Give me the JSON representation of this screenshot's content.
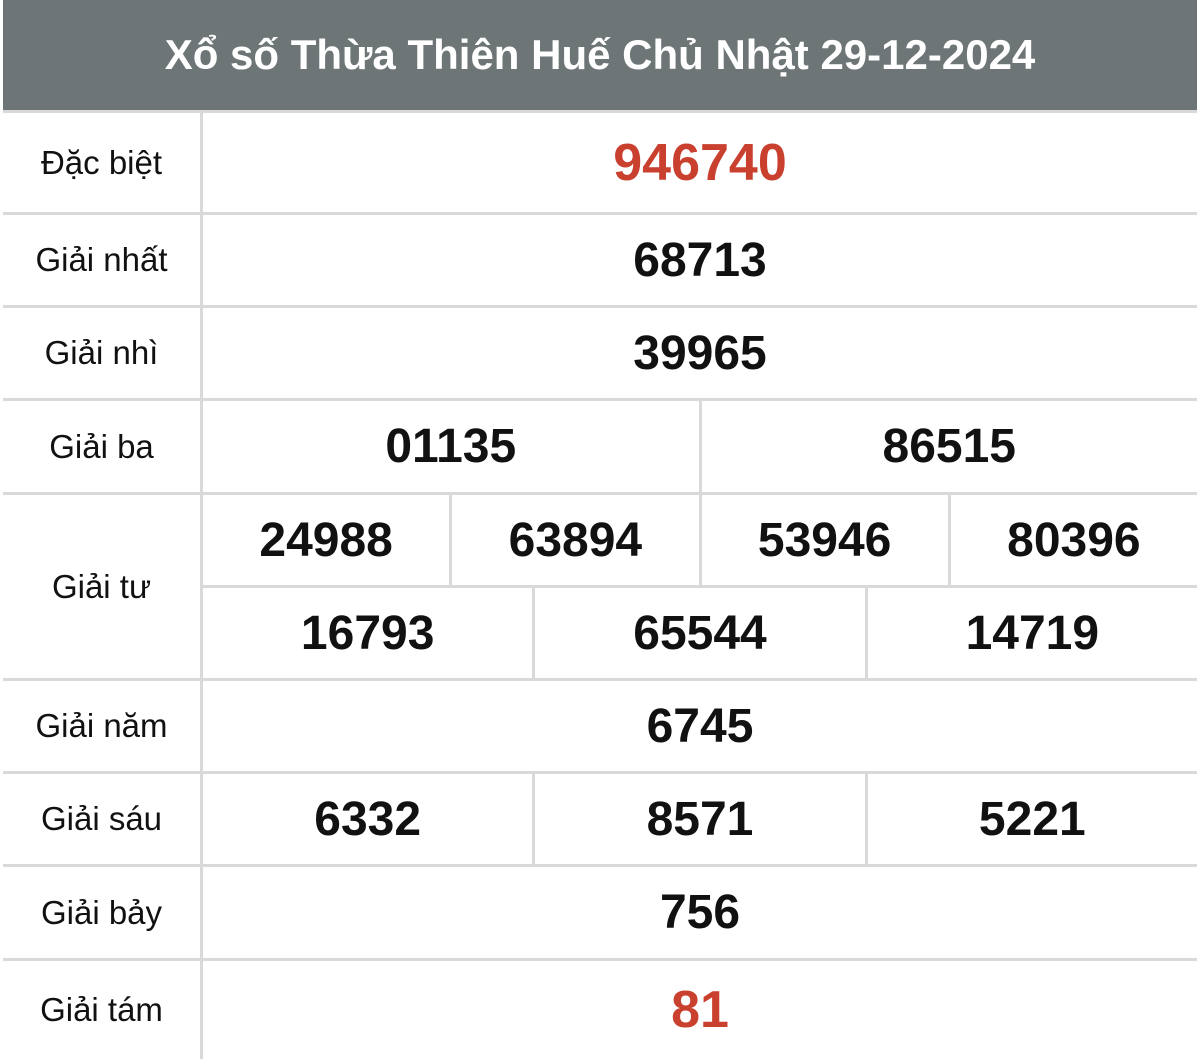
{
  "title": "Xổ số Thừa Thiên Huế Chủ Nhật 29-12-2024",
  "colors": {
    "header_bg": "#6e7576",
    "highlight": "#c9402f",
    "border": "#d9d9d9"
  },
  "prizes": [
    {
      "label": "Đặc biệt",
      "rows": [
        [
          "946740"
        ]
      ],
      "highlight": true
    },
    {
      "label": "Giải nhất",
      "rows": [
        [
          "68713"
        ]
      ]
    },
    {
      "label": "Giải nhì",
      "rows": [
        [
          "39965"
        ]
      ]
    },
    {
      "label": "Giải ba",
      "rows": [
        [
          "01135",
          "86515"
        ]
      ]
    },
    {
      "label": "Giải tư",
      "rows": [
        [
          "24988",
          "63894",
          "53946",
          "80396"
        ],
        [
          "16793",
          "65544",
          "14719"
        ]
      ]
    },
    {
      "label": "Giải năm",
      "rows": [
        [
          "6745"
        ]
      ]
    },
    {
      "label": "Giải sáu",
      "rows": [
        [
          "6332",
          "8571",
          "5221"
        ]
      ]
    },
    {
      "label": "Giải bảy",
      "rows": [
        [
          "756"
        ]
      ]
    },
    {
      "label": "Giải tám",
      "rows": [
        [
          "81"
        ]
      ],
      "highlight": true
    }
  ]
}
